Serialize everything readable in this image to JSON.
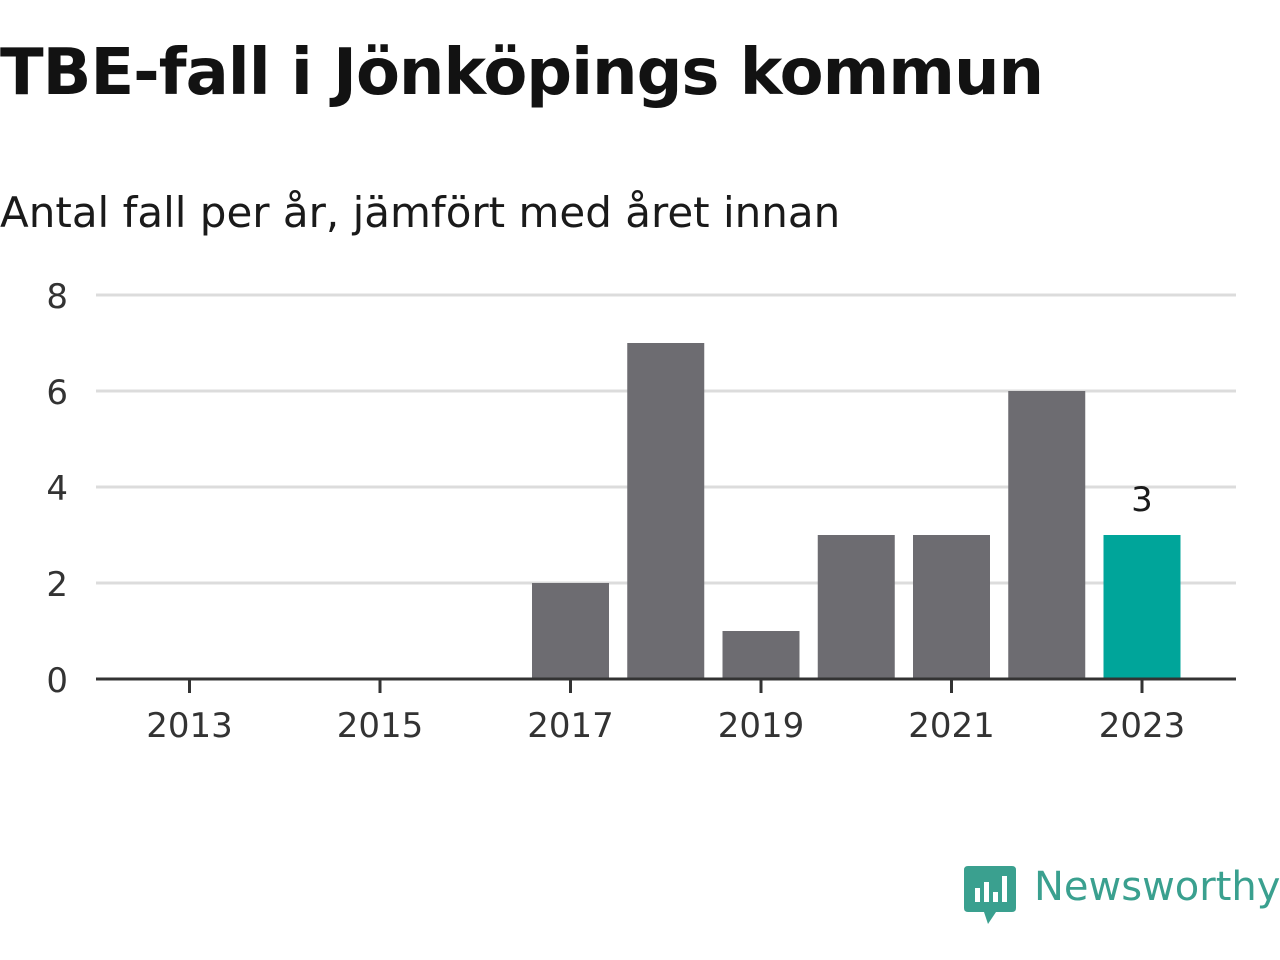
{
  "title": "TBE-fall i Jönköpings kommun",
  "subtitle": "Antal fall per år, jämfört med året innan",
  "brand": {
    "name": "Newsworthy",
    "icon": "newsworthy-logo-icon",
    "color": "#3aa08f"
  },
  "colors": {
    "bar": "#6d6c71",
    "highlight": "#00a59a",
    "grid": "#dcdcdc",
    "axis": "#333333",
    "text": "#333333"
  },
  "chart_data": {
    "type": "bar",
    "x": [
      2013,
      2014,
      2015,
      2016,
      2017,
      2018,
      2019,
      2020,
      2021,
      2022,
      2023
    ],
    "values": [
      0,
      0,
      0,
      0,
      2,
      7,
      1,
      3,
      3,
      6,
      3
    ],
    "xticks": [
      "2013",
      "2015",
      "2017",
      "2019",
      "2021",
      "2023"
    ],
    "yticks": [
      0,
      2,
      4,
      6,
      8
    ],
    "ylim": [
      0,
      8
    ],
    "highlight_index": 10,
    "highlight_label": "3",
    "grid": true,
    "xlabel": "",
    "ylabel": ""
  }
}
